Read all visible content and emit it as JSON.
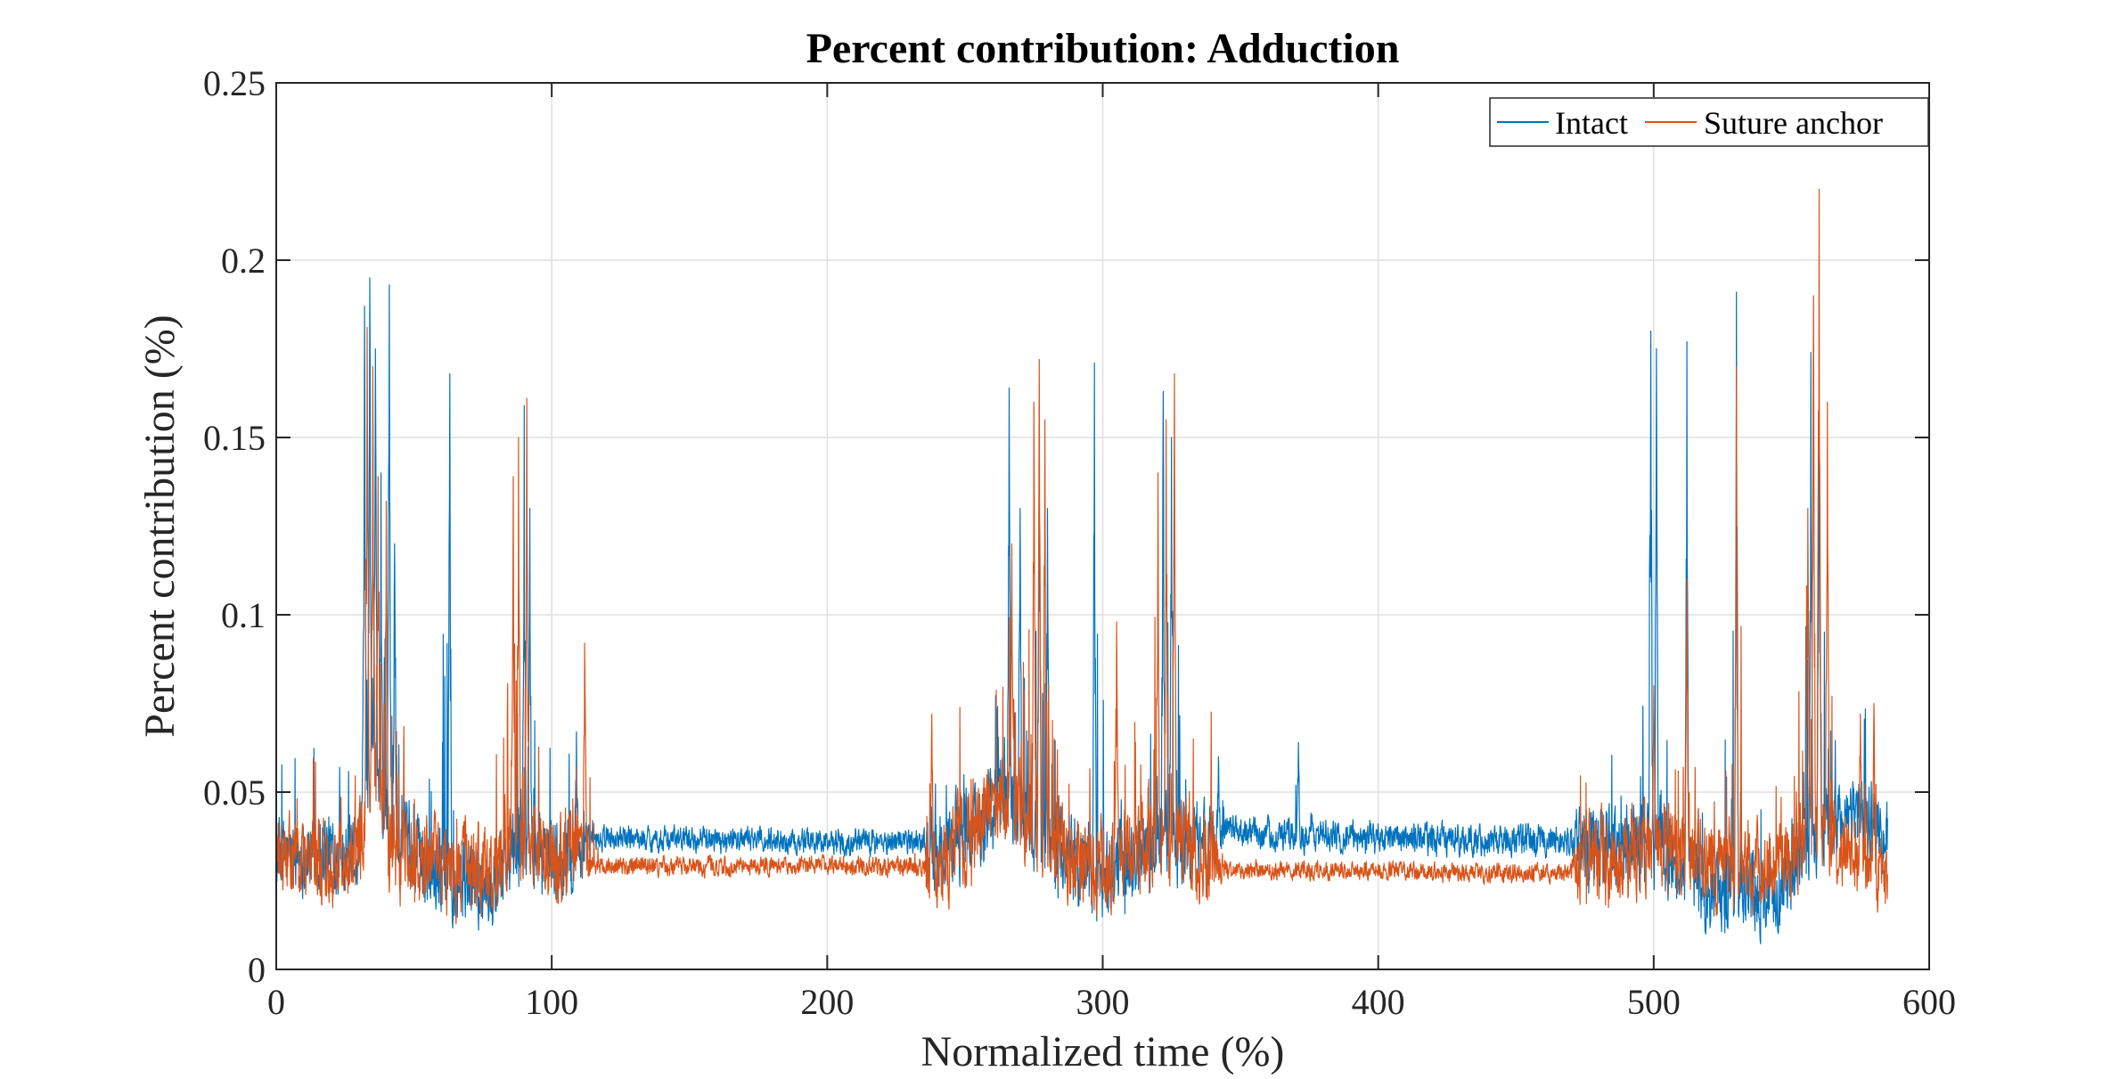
{
  "chart_data": {
    "type": "line",
    "title": "Percent contribution: Adduction",
    "xlabel": "Normalized time (%)",
    "ylabel": "Percent contribution (%)",
    "xlim": [
      0,
      600
    ],
    "ylim": [
      0,
      0.25
    ],
    "x_ticks": [
      0,
      100,
      200,
      300,
      400,
      500,
      600
    ],
    "x_tick_labels": [
      "0",
      "100",
      "200",
      "300",
      "400",
      "500",
      "600"
    ],
    "y_ticks": [
      0,
      0.05,
      0.1,
      0.15,
      0.2,
      0.25
    ],
    "y_tick_labels": [
      "0",
      "0.05",
      "0.1",
      "0.15",
      "0.2",
      "0.25"
    ],
    "grid": true,
    "legend_position": "top-right",
    "x_end": 585,
    "series": [
      {
        "name": "Intact",
        "color": "#0072BD",
        "baseline": [
          [
            0,
            0.032
          ],
          [
            30,
            0.034
          ],
          [
            35,
            0.06
          ],
          [
            42,
            0.035
          ],
          [
            60,
            0.028
          ],
          [
            78,
            0.022
          ],
          [
            88,
            0.035
          ],
          [
            100,
            0.03
          ],
          [
            112,
            0.034
          ],
          [
            116,
            0.037
          ],
          [
            235,
            0.036
          ],
          [
            240,
            0.032
          ],
          [
            265,
            0.05
          ],
          [
            280,
            0.035
          ],
          [
            300,
            0.025
          ],
          [
            320,
            0.035
          ],
          [
            340,
            0.035
          ],
          [
            345,
            0.04
          ],
          [
            360,
            0.038
          ],
          [
            470,
            0.036
          ],
          [
            475,
            0.035
          ],
          [
            500,
            0.035
          ],
          [
            520,
            0.022
          ],
          [
            545,
            0.022
          ],
          [
            560,
            0.04
          ],
          [
            575,
            0.045
          ],
          [
            585,
            0.037
          ]
        ],
        "amplitude": [
          [
            0,
            0.012
          ],
          [
            110,
            0.014
          ],
          [
            114,
            0.004
          ],
          [
            235,
            0.004
          ],
          [
            238,
            0.014
          ],
          [
            340,
            0.014
          ],
          [
            344,
            0.005
          ],
          [
            470,
            0.005
          ],
          [
            473,
            0.014
          ],
          [
            585,
            0.012
          ]
        ],
        "peaks": [
          [
            32,
            0.187
          ],
          [
            34,
            0.195
          ],
          [
            36,
            0.175
          ],
          [
            38,
            0.14
          ],
          [
            41,
            0.193
          ],
          [
            43,
            0.12
          ],
          [
            63,
            0.168
          ],
          [
            90,
            0.159
          ],
          [
            92,
            0.13
          ],
          [
            109,
            0.067
          ],
          [
            266,
            0.164
          ],
          [
            270,
            0.13
          ],
          [
            277,
            0.16
          ],
          [
            280,
            0.13
          ],
          [
            297,
            0.171
          ],
          [
            322,
            0.163
          ],
          [
            325,
            0.15
          ],
          [
            342,
            0.06
          ],
          [
            371,
            0.064
          ],
          [
            499,
            0.18
          ],
          [
            501,
            0.175
          ],
          [
            512,
            0.177
          ],
          [
            530,
            0.191
          ],
          [
            557,
            0.174
          ],
          [
            560,
            0.16
          ]
        ]
      },
      {
        "name": "Suture anchor",
        "color": "#D95319",
        "baseline": [
          [
            0,
            0.03
          ],
          [
            30,
            0.032
          ],
          [
            35,
            0.06
          ],
          [
            42,
            0.033
          ],
          [
            60,
            0.03
          ],
          [
            78,
            0.026
          ],
          [
            88,
            0.038
          ],
          [
            100,
            0.032
          ],
          [
            112,
            0.03
          ],
          [
            116,
            0.029
          ],
          [
            235,
            0.029
          ],
          [
            240,
            0.03
          ],
          [
            265,
            0.05
          ],
          [
            280,
            0.035
          ],
          [
            300,
            0.028
          ],
          [
            320,
            0.035
          ],
          [
            340,
            0.032
          ],
          [
            345,
            0.028
          ],
          [
            360,
            0.028
          ],
          [
            470,
            0.027
          ],
          [
            475,
            0.03
          ],
          [
            500,
            0.035
          ],
          [
            520,
            0.03
          ],
          [
            545,
            0.028
          ],
          [
            560,
            0.04
          ],
          [
            575,
            0.03
          ],
          [
            585,
            0.025
          ]
        ],
        "amplitude": [
          [
            0,
            0.013
          ],
          [
            110,
            0.015
          ],
          [
            114,
            0.003
          ],
          [
            235,
            0.003
          ],
          [
            238,
            0.015
          ],
          [
            340,
            0.015
          ],
          [
            344,
            0.003
          ],
          [
            470,
            0.003
          ],
          [
            473,
            0.015
          ],
          [
            585,
            0.012
          ]
        ],
        "peaks": [
          [
            33,
            0.181
          ],
          [
            35,
            0.17
          ],
          [
            37,
            0.139
          ],
          [
            40,
            0.132
          ],
          [
            86,
            0.139
          ],
          [
            88,
            0.15
          ],
          [
            91,
            0.161
          ],
          [
            112,
            0.092
          ],
          [
            238,
            0.072
          ],
          [
            267,
            0.12
          ],
          [
            275,
            0.16
          ],
          [
            277,
            0.172
          ],
          [
            279,
            0.155
          ],
          [
            305,
            0.098
          ],
          [
            320,
            0.14
          ],
          [
            323,
            0.155
          ],
          [
            326,
            0.168
          ],
          [
            500,
            0.08
          ],
          [
            512,
            0.11
          ],
          [
            530,
            0.17
          ],
          [
            556,
            0.13
          ],
          [
            558,
            0.19
          ],
          [
            560,
            0.22
          ],
          [
            563,
            0.16
          ],
          [
            575,
            0.072
          ],
          [
            580,
            0.075
          ]
        ]
      }
    ]
  }
}
